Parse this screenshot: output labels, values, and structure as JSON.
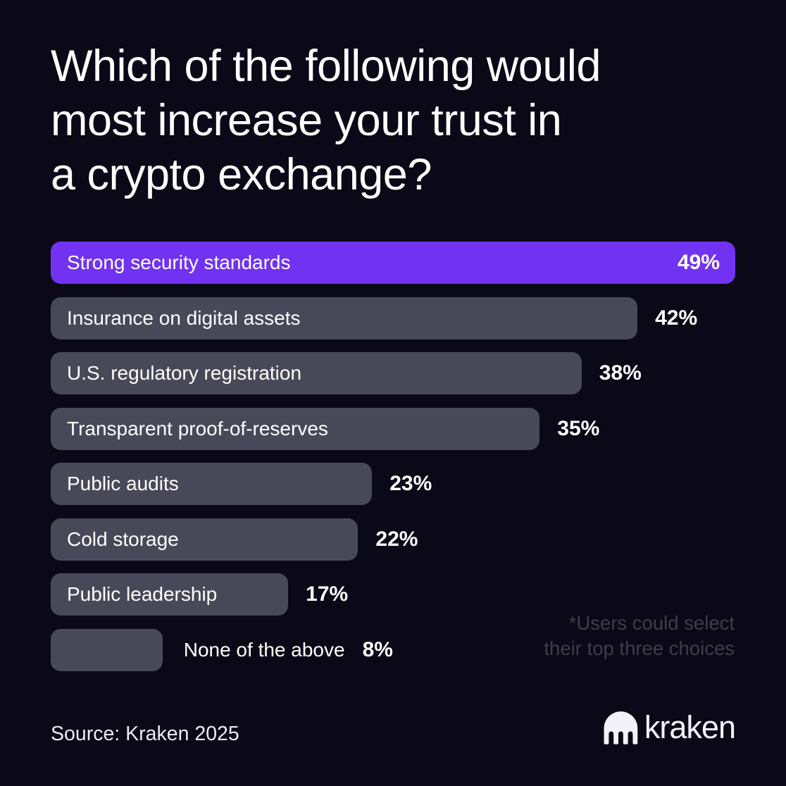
{
  "colors": {
    "background": "#0B0817",
    "accent_purple": "#7132F2",
    "bar_gray": "#484958",
    "text_white": "#FFFFFF",
    "muted_annotation": "#3E3D4E",
    "footer_text": "#ECEAF4",
    "logo_color": "#F3F1F9"
  },
  "header": {
    "title_lines": [
      "Which of the following would",
      "most increase your trust in",
      "a crypto exchange?"
    ]
  },
  "chart_data": {
    "type": "bar",
    "orientation": "horizontal",
    "title": "Which of the following would most increase your trust in a crypto exchange?",
    "xlabel": "",
    "ylabel": "",
    "unit": "%",
    "scale_max": 49,
    "grid": false,
    "legend": false,
    "categories": [
      "Strong security standards",
      "Insurance on digital assets",
      "U.S. regulatory registration",
      "Transparent proof-of-reserves",
      "Public audits",
      "Cold storage",
      "Public leadership",
      "None of the above"
    ],
    "values": [
      49,
      42,
      38,
      35,
      23,
      22,
      17,
      8
    ],
    "bars": [
      {
        "label": "Strong security standards",
        "value": 49,
        "value_label": "49%",
        "highlight": true,
        "label_placement": "inside",
        "value_placement": "inside"
      },
      {
        "label": "Insurance on digital assets",
        "value": 42,
        "value_label": "42%",
        "highlight": false,
        "label_placement": "inside",
        "value_placement": "outside"
      },
      {
        "label": "U.S. regulatory registration",
        "value": 38,
        "value_label": "38%",
        "highlight": false,
        "label_placement": "inside",
        "value_placement": "outside"
      },
      {
        "label": "Transparent proof-of-reserves",
        "value": 35,
        "value_label": "35%",
        "highlight": false,
        "label_placement": "inside",
        "value_placement": "outside"
      },
      {
        "label": "Public audits",
        "value": 23,
        "value_label": "23%",
        "highlight": false,
        "label_placement": "inside",
        "value_placement": "outside"
      },
      {
        "label": "Cold storage",
        "value": 22,
        "value_label": "22%",
        "highlight": false,
        "label_placement": "inside",
        "value_placement": "outside"
      },
      {
        "label": "Public leadership",
        "value": 17,
        "value_label": "17%",
        "highlight": false,
        "label_placement": "inside",
        "value_placement": "outside"
      },
      {
        "label": "None of the above",
        "value": 8,
        "value_label": "8%",
        "highlight": false,
        "label_placement": "outside",
        "value_placement": "outside"
      }
    ],
    "annotation": "*Users could select their top three choices"
  },
  "annotation": {
    "line1": "*Users could select",
    "line2": "their top three choices"
  },
  "footer": {
    "source": "Source: Kraken 2025",
    "brand_wordmark": "kraken"
  }
}
